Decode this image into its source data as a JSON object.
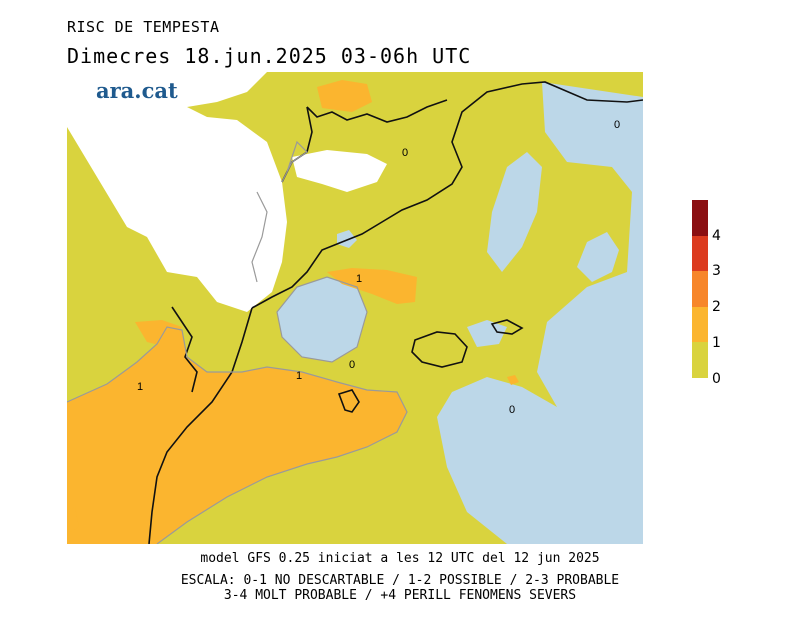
{
  "header": {
    "title": "RISC DE TEMPESTA",
    "subtitle": "Dimecres   18.jun.2025 03-06h UTC"
  },
  "logo": {
    "text": "ara.cat",
    "color": "#1f5a8e"
  },
  "map": {
    "colors": {
      "sea_zero": "#bcd7e8",
      "level_0_1": "#d9d33e",
      "level_1_2": "#fbb52f",
      "no_data": "#ffffff",
      "coast": "#111111",
      "contour": "#9a9a9a"
    },
    "contour_labels": [
      "0",
      "0",
      "1",
      "0",
      "1",
      "1",
      "0"
    ]
  },
  "legend": {
    "colors": [
      "#8b0f12",
      "#dc3b1f",
      "#f7862a",
      "#fbb52f",
      "#d9d33e"
    ],
    "labels": [
      "4",
      "3",
      "2",
      "1",
      "0"
    ]
  },
  "footer": {
    "model_line": "model GFS 0.25 iniciat a les 12 UTC del 12 jun 2025",
    "scale_line1": "ESCALA: 0-1 NO DESCARTABLE / 1-2 POSSIBLE / 2-3 PROBABLE",
    "scale_line2": "3-4 MOLT PROBABLE / +4 PERILL FENOMENS SEVERS"
  }
}
